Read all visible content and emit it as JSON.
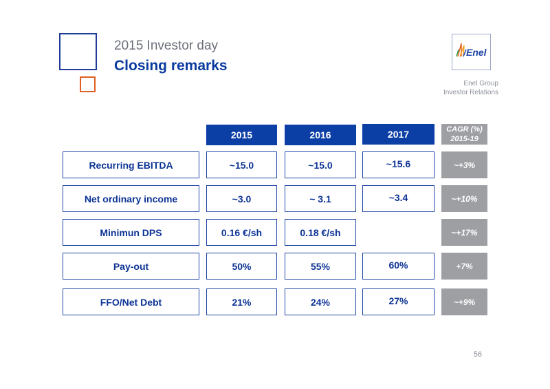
{
  "header": {
    "kicker": "2015 Investor day",
    "title": "Closing remarks",
    "logo_text": "Enel",
    "group_line1": "Enel Group",
    "group_line2": "Investor Relations"
  },
  "table": {
    "columns": [
      "2015",
      "2016",
      "2017"
    ],
    "cagr_header_line1": "CAGR (%)",
    "cagr_header_line2": "2015-19",
    "rows": [
      {
        "label": "Recurring EBITDA",
        "values": [
          "~15.0",
          "~15.0",
          "~15.6"
        ],
        "cagr": "~+3%"
      },
      {
        "label": "Net ordinary income",
        "values": [
          "~3.0",
          "~ 3.1",
          "~3.4"
        ],
        "cagr": "~+10%"
      },
      {
        "label": "Minimun DPS",
        "values": [
          "0.16 €/sh",
          "0.18 €/sh",
          ""
        ],
        "cagr": "~+17%"
      },
      {
        "label": "Pay-out",
        "values": [
          "50%",
          "55%",
          "60%"
        ],
        "cagr": "+7%"
      },
      {
        "label": "FFO/Net Debt",
        "values": [
          "21%",
          "24%",
          "27%"
        ],
        "cagr": "~+9%"
      }
    ]
  },
  "footer": {
    "page_number": "56"
  },
  "colors": {
    "brand_blue": "#0c3fa6",
    "accent_orange": "#e2601f",
    "cagr_grey": "#9d9fa3"
  }
}
